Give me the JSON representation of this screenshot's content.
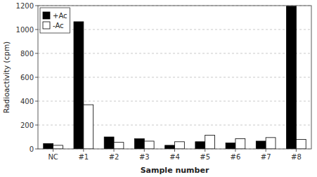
{
  "chart_data": {
    "type": "bar",
    "categories": [
      "NC",
      "#1",
      "#2",
      "#3",
      "#4",
      "#5",
      "#6",
      "#7",
      "#8"
    ],
    "series": [
      {
        "name": "+Ac",
        "color": "#000000",
        "values": [
          45,
          1065,
          100,
          85,
          30,
          60,
          50,
          65,
          1195
        ]
      },
      {
        "name": "-Ac",
        "color": "#ffffff",
        "values": [
          30,
          370,
          55,
          65,
          60,
          115,
          85,
          95,
          80
        ]
      }
    ],
    "xlabel": "Sample number",
    "ylabel": "Radioactivity (cpm)",
    "ylim": [
      0,
      1200
    ],
    "yticks": [
      0,
      200,
      400,
      600,
      800,
      1000,
      1200
    ],
    "grid": true,
    "legend": "upper left"
  }
}
